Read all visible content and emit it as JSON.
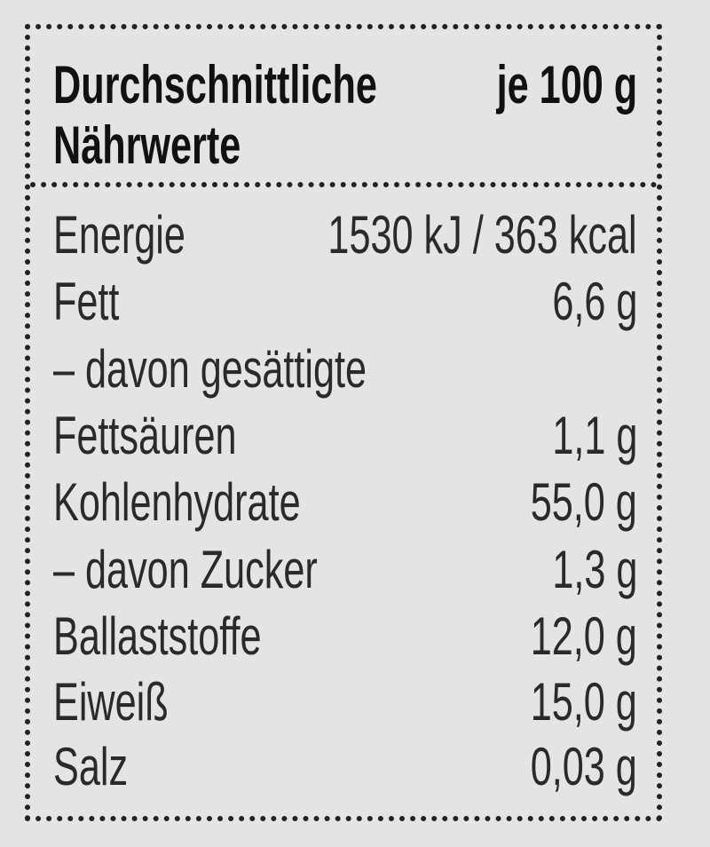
{
  "header": {
    "title_line1": "Durchschnittliche",
    "title_line2": "Nährwerte",
    "per": "je 100 g"
  },
  "rows": [
    {
      "label": "Energie",
      "value": "1530 kJ / 363 kcal"
    },
    {
      "label": "Fett",
      "value": "6,6 g"
    },
    {
      "label": "– davon gesättigte",
      "value": ""
    },
    {
      "label": "Fettsäuren",
      "value": "1,1 g"
    },
    {
      "label": "Kohlenhydrate",
      "value": "55,0 g"
    },
    {
      "label": "– davon Zucker",
      "value": "1,3 g"
    },
    {
      "label": "Ballaststoffe",
      "value": "12,0 g"
    },
    {
      "label": "Eiweiß",
      "value": "15,0 g"
    },
    {
      "label": "Salz",
      "value": "0,03 g"
    }
  ]
}
